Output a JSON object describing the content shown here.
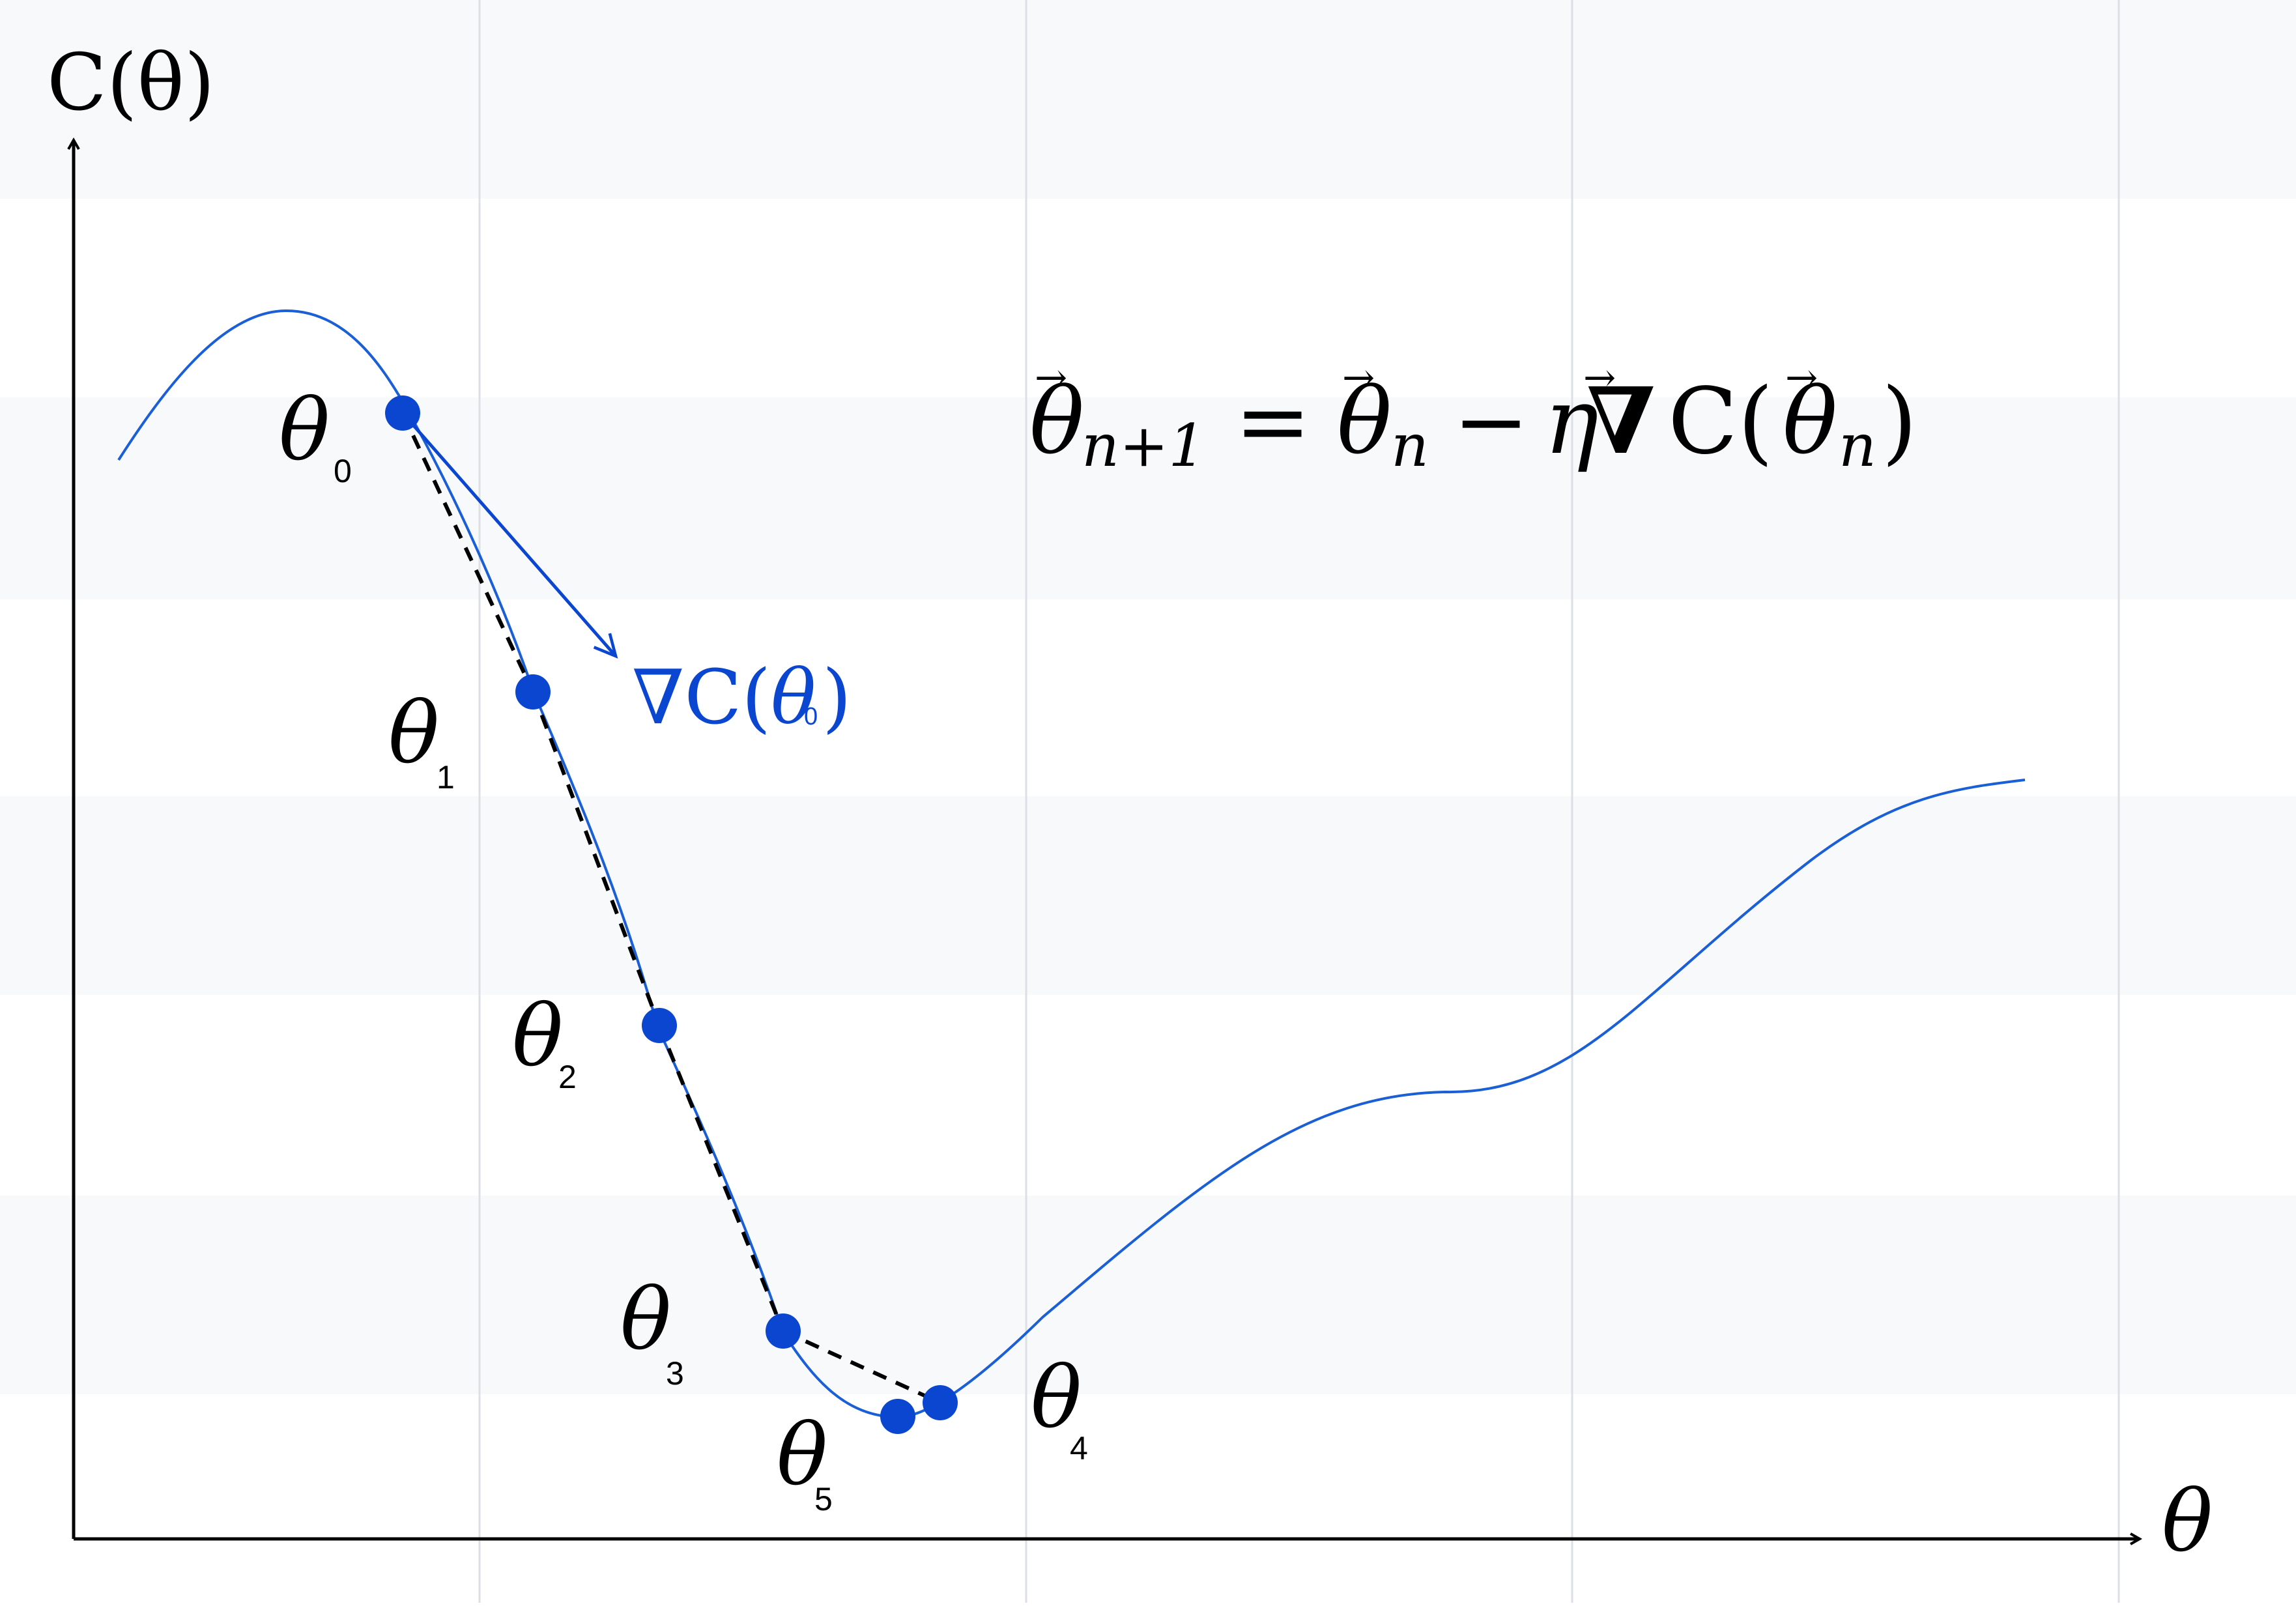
{
  "axes": {
    "y_label": "C(θ)",
    "x_label": "θ"
  },
  "formula": {
    "lhs_symbol": "θ",
    "lhs_subscript": "n+1",
    "equals": "=",
    "rhs_symbol": "θ",
    "rhs_subscript": "n",
    "minus": "−",
    "rate": "η",
    "nabla": "∇",
    "cost": "C(",
    "inner_symbol": "θ",
    "inner_subscript": "n",
    "close": ")",
    "vector_arrow": "→"
  },
  "gradient_label": {
    "nabla": "∇",
    "cost": "C(",
    "symbol": "θ",
    "subscript": "0",
    "close": ")"
  },
  "points": [
    {
      "symbol": "θ",
      "subscript": "0"
    },
    {
      "symbol": "θ",
      "subscript": "1"
    },
    {
      "symbol": "θ",
      "subscript": "2"
    },
    {
      "symbol": "θ",
      "subscript": "3"
    },
    {
      "symbol": "θ",
      "subscript": "4"
    },
    {
      "symbol": "θ",
      "subscript": "5"
    }
  ],
  "colors": {
    "curve": "#1a5fd6",
    "point": "#0a46d0",
    "gradient_arrow": "#0a46d0",
    "axis": "#000000",
    "step_dash": "#000000",
    "band": "#f8f9fb",
    "gridline": "#dcdfe4"
  }
}
